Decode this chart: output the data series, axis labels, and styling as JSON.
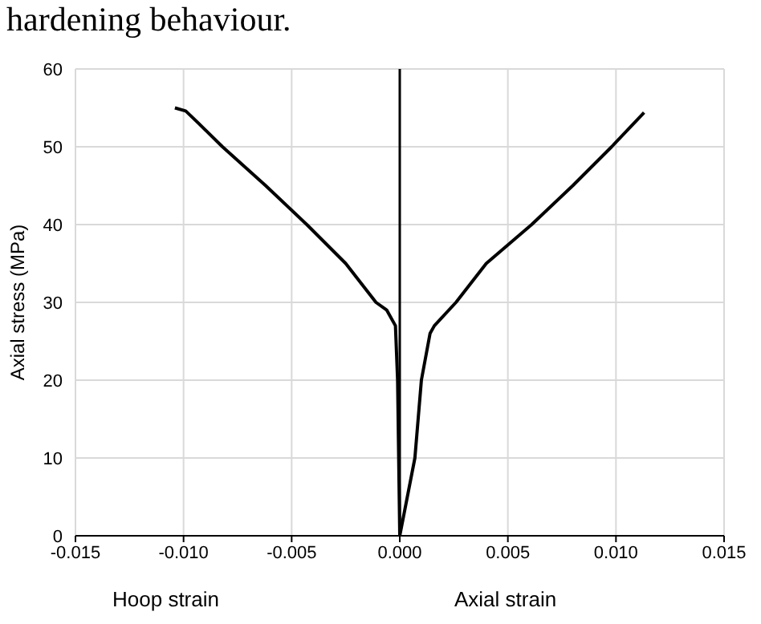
{
  "chart_data": {
    "type": "line",
    "ylabel": "Axial stress (MPa)",
    "annotations": [
      "hardening behaviour.",
      "Hoop strain",
      "Axial strain"
    ],
    "xlim": [
      -0.015,
      0.015
    ],
    "xticks": [
      {
        "value": -0.015,
        "label": "-0.015"
      },
      {
        "value": -0.01,
        "label": "-0.010"
      },
      {
        "value": -0.005,
        "label": "-0.005"
      },
      {
        "value": 0,
        "label": "0.000"
      },
      {
        "value": 0.005,
        "label": "0.005"
      },
      {
        "value": 0.01,
        "label": "0.010"
      },
      {
        "value": 0.015,
        "label": "0.015"
      }
    ],
    "ylim": [
      0,
      60
    ],
    "yticks": [
      0,
      10,
      20,
      30,
      40,
      50,
      60
    ],
    "grid": true,
    "marker": "none",
    "line_style": "solid",
    "ref_lines": [
      {
        "axis": "x",
        "value": 0,
        "color": "#000000"
      }
    ],
    "series": [
      {
        "color": "#000000",
        "x": [
          0,
          -0.0001,
          -0.0002,
          -0.0006,
          -0.0011,
          -0.0025,
          -0.0043,
          -0.0062,
          -0.0082,
          -0.0093,
          -0.0099,
          -0.0104
        ],
        "values": [
          0,
          20,
          27,
          29,
          30,
          35,
          40,
          45,
          50,
          53,
          54.6,
          55
        ]
      },
      {
        "color": "#000000",
        "x": [
          0,
          0.0007,
          0.001,
          0.0014,
          0.0016,
          0.0026,
          0.004,
          0.0061,
          0.008,
          0.0098,
          0.0113
        ],
        "values": [
          0,
          10,
          20,
          26,
          27,
          30,
          35,
          40,
          45,
          50,
          54.4
        ]
      }
    ]
  }
}
